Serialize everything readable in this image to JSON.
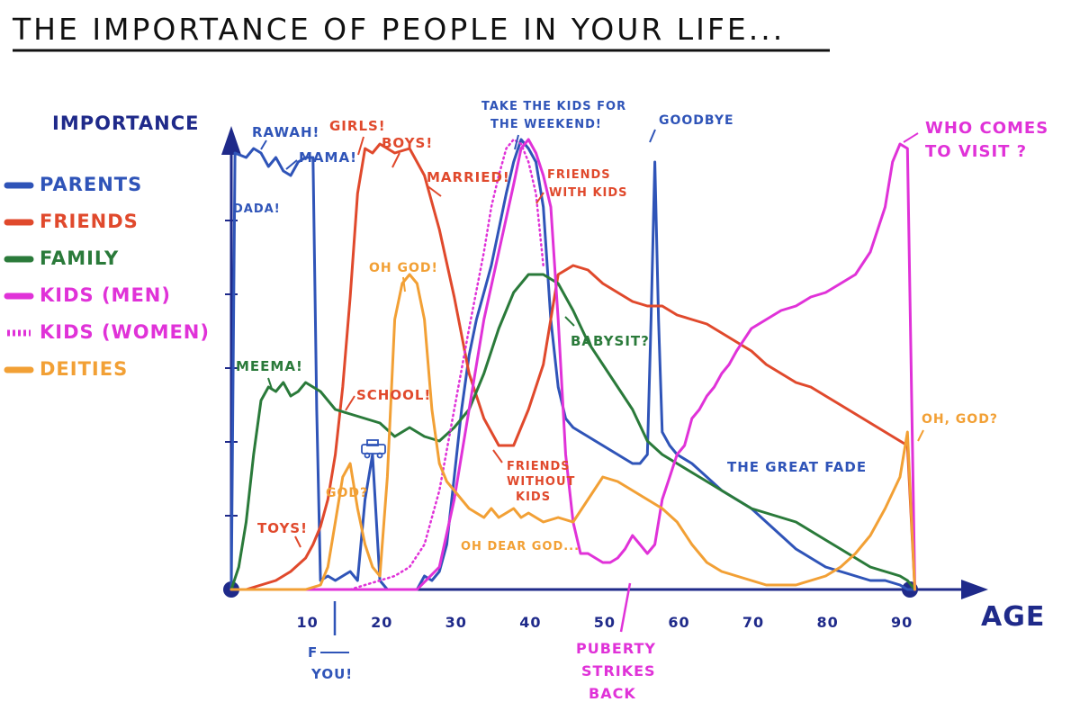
{
  "title": "THE IMPORTANCE OF PEOPLE IN YOUR LIFE...",
  "chart_data": {
    "type": "line",
    "title": "THE IMPORTANCE OF PEOPLE IN YOUR LIFE...",
    "ylabel": "IMPORTANCE",
    "xlabel": "AGE",
    "x_ticks": [
      "10",
      "20",
      "30",
      "40",
      "50",
      "60",
      "70",
      "80",
      "90"
    ],
    "xlim": [
      0,
      92
    ],
    "ylim": [
      0,
      100
    ],
    "grid": false,
    "legend_position": "left",
    "series": [
      {
        "name": "PARENTS",
        "color": "#2f54b8",
        "dash": "solid",
        "x": [
          0,
          0.5,
          2,
          3,
          4,
          5,
          6,
          7,
          8,
          9,
          10,
          11,
          11.5,
          12,
          13,
          14,
          15,
          16,
          17,
          18,
          19,
          20,
          21,
          22,
          23,
          24,
          25,
          26,
          27,
          28,
          29,
          30,
          31,
          32,
          33,
          34,
          35,
          36,
          37,
          38,
          39,
          40,
          41,
          42,
          43,
          44,
          45,
          46,
          47,
          48,
          49,
          50,
          51,
          52,
          53,
          54,
          55,
          56,
          56.5,
          57,
          57.5,
          58,
          59,
          60,
          62,
          64,
          66,
          68,
          70,
          72,
          74,
          76,
          78,
          80,
          82,
          84,
          86,
          88,
          90,
          91,
          92
        ],
        "y": [
          0,
          97,
          96,
          98,
          97,
          94,
          96,
          93,
          92,
          95,
          96,
          96,
          40,
          2,
          3,
          2,
          3,
          4,
          2,
          20,
          30,
          2,
          0,
          0,
          0,
          0,
          0,
          3,
          2,
          4,
          10,
          25,
          40,
          52,
          60,
          66,
          72,
          80,
          88,
          95,
          100,
          98,
          95,
          85,
          60,
          45,
          38,
          36,
          35,
          34,
          33,
          32,
          31,
          30,
          29,
          28,
          28,
          30,
          60,
          95,
          60,
          35,
          32,
          30,
          28,
          25,
          22,
          20,
          18,
          15,
          12,
          9,
          7,
          5,
          4,
          3,
          2,
          2,
          1,
          0,
          0
        ]
      },
      {
        "name": "FRIENDS",
        "color": "#e0492c",
        "dash": "solid",
        "x": [
          0,
          2,
          4,
          6,
          8,
          10,
          11,
          12,
          13,
          14,
          15,
          16,
          17,
          18,
          19,
          20,
          22,
          24,
          26,
          28,
          30,
          32,
          34,
          36,
          38,
          40,
          42,
          44,
          46,
          48,
          50,
          52,
          54,
          56,
          58,
          60,
          62,
          64,
          66,
          68,
          70,
          72,
          74,
          76,
          78,
          80,
          82,
          84,
          86,
          88,
          90,
          91,
          92
        ],
        "y": [
          0,
          0,
          1,
          2,
          4,
          7,
          10,
          14,
          20,
          30,
          45,
          65,
          88,
          98,
          97,
          99,
          97,
          98,
          92,
          80,
          65,
          48,
          38,
          32,
          32,
          40,
          50,
          70,
          72,
          71,
          68,
          66,
          64,
          63,
          63,
          61,
          60,
          59,
          57,
          55,
          53,
          50,
          48,
          46,
          45,
          43,
          41,
          39,
          37,
          35,
          33,
          32,
          0
        ]
      },
      {
        "name": "FAMILY",
        "color": "#2a7a3a",
        "dash": "solid",
        "x": [
          0,
          1,
          2,
          3,
          4,
          5,
          6,
          7,
          8,
          9,
          10,
          11,
          12,
          14,
          16,
          18,
          20,
          22,
          24,
          26,
          28,
          30,
          32,
          34,
          36,
          38,
          40,
          42,
          44,
          46,
          48,
          50,
          52,
          54,
          56,
          58,
          60,
          62,
          64,
          66,
          68,
          70,
          72,
          74,
          76,
          78,
          80,
          82,
          84,
          86,
          88,
          90,
          91,
          92
        ],
        "y": [
          0,
          5,
          15,
          30,
          42,
          45,
          44,
          46,
          43,
          44,
          46,
          45,
          44,
          40,
          39,
          38,
          37,
          34,
          36,
          34,
          33,
          36,
          40,
          48,
          58,
          66,
          70,
          70,
          68,
          62,
          55,
          50,
          45,
          40,
          33,
          30,
          28,
          26,
          24,
          22,
          20,
          18,
          17,
          16,
          15,
          13,
          11,
          9,
          7,
          5,
          4,
          3,
          2,
          0
        ]
      },
      {
        "name": "KIDS (MEN)",
        "color": "#e032d8",
        "dash": "solid",
        "x": [
          0,
          25,
          28,
          30,
          32,
          34,
          36,
          38,
          39,
          40,
          41,
          42,
          43,
          44,
          45,
          46,
          47,
          48,
          49,
          50,
          51,
          52,
          53,
          54,
          55,
          56,
          57,
          58,
          59,
          60,
          61,
          62,
          63,
          64,
          65,
          66,
          67,
          68,
          70,
          72,
          74,
          76,
          78,
          80,
          82,
          84,
          86,
          88,
          89,
          90,
          91,
          92
        ],
        "y": [
          0,
          0,
          5,
          20,
          40,
          60,
          75,
          90,
          98,
          100,
          97,
          92,
          85,
          60,
          30,
          15,
          8,
          8,
          7,
          6,
          6,
          7,
          9,
          12,
          10,
          8,
          10,
          20,
          25,
          30,
          32,
          38,
          40,
          43,
          45,
          48,
          50,
          53,
          58,
          60,
          62,
          63,
          65,
          66,
          68,
          70,
          75,
          85,
          95,
          99,
          98,
          0
        ]
      },
      {
        "name": "KIDS (WOMEN)",
        "color": "#e032d8",
        "dash": "dotted",
        "x": [
          0,
          16,
          18,
          20,
          22,
          24,
          26,
          28,
          30,
          32,
          34,
          35,
          36,
          37,
          38,
          39,
          40,
          41,
          42
        ],
        "y": [
          0,
          0,
          1,
          2,
          3,
          5,
          10,
          22,
          40,
          58,
          75,
          85,
          92,
          98,
          100,
          99,
          95,
          88,
          72
        ]
      },
      {
        "name": "DEITIES",
        "color": "#f2a035",
        "dash": "solid",
        "x": [
          0,
          10,
          12,
          13,
          14,
          15,
          16,
          17,
          18,
          19,
          20,
          21,
          22,
          23,
          24,
          25,
          26,
          27,
          28,
          29,
          30,
          31,
          32,
          33,
          34,
          35,
          36,
          37,
          38,
          39,
          40,
          42,
          44,
          46,
          48,
          50,
          52,
          54,
          56,
          58,
          60,
          62,
          64,
          66,
          68,
          70,
          72,
          74,
          76,
          78,
          80,
          82,
          84,
          86,
          88,
          90,
          91,
          92
        ],
        "y": [
          0,
          0,
          1,
          5,
          15,
          25,
          28,
          18,
          10,
          5,
          3,
          25,
          60,
          68,
          70,
          68,
          60,
          40,
          28,
          24,
          22,
          20,
          18,
          17,
          16,
          18,
          16,
          17,
          18,
          16,
          17,
          15,
          16,
          15,
          20,
          25,
          24,
          22,
          20,
          18,
          15,
          10,
          6,
          4,
          3,
          2,
          1,
          1,
          1,
          2,
          3,
          5,
          8,
          12,
          18,
          25,
          35,
          0
        ]
      }
    ]
  },
  "legend": [
    {
      "label": "PARENTS",
      "color": "#2f54b8",
      "style": "solid"
    },
    {
      "label": "FRIENDS",
      "color": "#e0492c",
      "style": "solid"
    },
    {
      "label": "FAMILY",
      "color": "#2a7a3a",
      "style": "solid"
    },
    {
      "label": "KIDS (MEN)",
      "color": "#e032d8",
      "style": "solid"
    },
    {
      "label": "KIDS (WOMEN)",
      "color": "#e032d8",
      "style": "dotted"
    },
    {
      "label": "DEITIES",
      "color": "#f2a035",
      "style": "solid"
    }
  ],
  "annotations": {
    "rawah": "RAWAH!",
    "mama": "MAMA!",
    "dada": "DADA!",
    "meema": "MEEMA!",
    "toys": "TOYS!",
    "girls": "GIRLS!",
    "boys": "BOYS!",
    "school": "SCHOOL!",
    "god_q": "GOD?",
    "oh_god": "OH GOD!",
    "married": "MARRIED!",
    "take_kids_1": "TAKE THE KIDS FOR",
    "take_kids_2": "THE WEEKEND!",
    "friends_kids_1": "FRIENDS",
    "friends_kids_2": "WITH KIDS",
    "babysit": "BABYSIT?",
    "friends_without_1": "FRIENDS",
    "friends_without_2": "WITHOUT",
    "friends_without_3": "KIDS",
    "oh_dear_god": "OH DEAR GOD...",
    "goodbye": "GOODBYE",
    "great_fade": "THE GREAT FADE",
    "who_visit_1": "WHO COMES",
    "who_visit_2": "TO VISIT ?",
    "oh_god_q": "OH, GOD?",
    "f_you_1": "F",
    "f_you_2": "YOU!",
    "puberty_1": "PUBERTY",
    "puberty_2": "STRIKES",
    "puberty_3": "BACK"
  },
  "colors": {
    "axis": "#1f2a8a",
    "parents": "#2f54b8",
    "friends": "#e0492c",
    "family": "#2a7a3a",
    "kids": "#e032d8",
    "deities": "#f2a035",
    "title": "#111111"
  }
}
